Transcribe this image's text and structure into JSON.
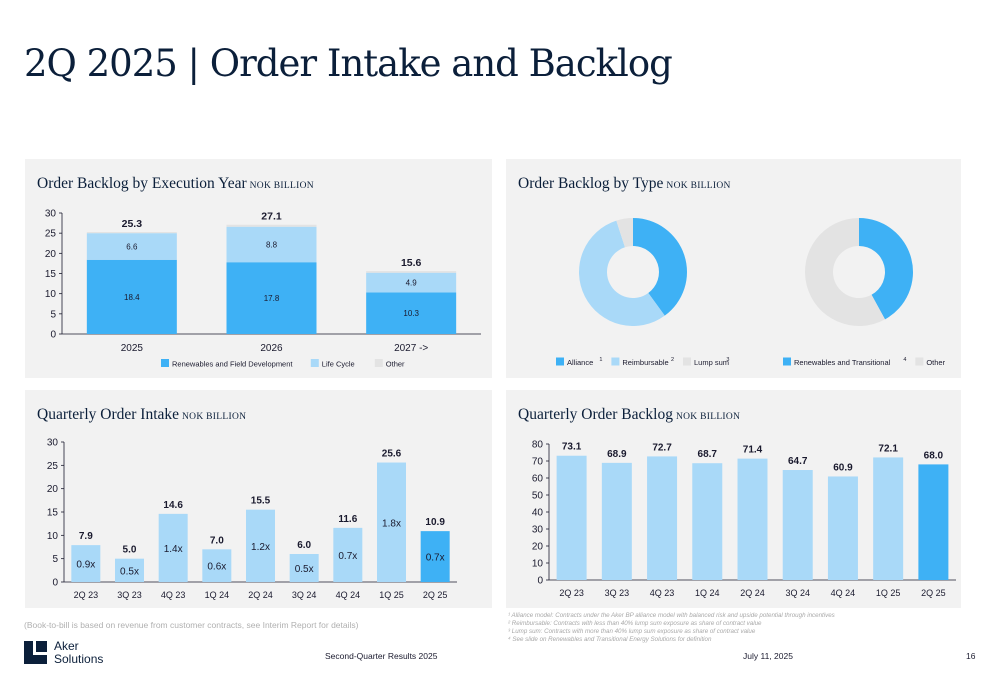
{
  "page": {
    "title": "2Q 2025 | Order Intake and Backlog"
  },
  "colors": {
    "renewables": "#3eb1f5",
    "lifecycle": "#a9d9f8",
    "other": "#e3e3e3",
    "dark": "#1a1a2e",
    "panel": "#f2f2f2"
  },
  "panels": {
    "backlog_year": {
      "title": "Order Backlog by Execution Year",
      "unit": "NOK BILLION"
    },
    "backlog_type": {
      "title": "Order Backlog by Type",
      "unit": "NOK BILLION"
    },
    "quarterly_intake": {
      "title": "Quarterly Order Intake",
      "unit": "NOK BILLION"
    },
    "quarterly_backlog": {
      "title": "Quarterly Order Backlog",
      "unit": "NOK BILLION"
    }
  },
  "chart_data": [
    {
      "id": "backlog_year",
      "type": "bar",
      "stacked": true,
      "categories": [
        "2025",
        "2026",
        "2027 ->"
      ],
      "series": [
        {
          "name": "Renewables and Field Development",
          "values": [
            18.4,
            17.8,
            10.3
          ],
          "color": "#3eb1f5"
        },
        {
          "name": "Life Cycle",
          "values": [
            6.6,
            8.8,
            4.9
          ],
          "color": "#a9d9f8"
        },
        {
          "name": "Other",
          "values": [
            0.3,
            0.5,
            0.4
          ],
          "color": "#e3e3e3"
        }
      ],
      "segment_labels": [
        [
          "18.4",
          "6.6"
        ],
        [
          "17.8",
          "8.8"
        ],
        [
          "10.3",
          "4.9"
        ]
      ],
      "totals": [
        "25.3",
        "27.1",
        "15.6"
      ],
      "yticks": [
        "0",
        "5",
        "10",
        "15",
        "20",
        "25",
        "30"
      ],
      "ylim": [
        0,
        30
      ],
      "legend_position": "bottom",
      "grid": false
    },
    {
      "id": "backlog_type_1",
      "type": "pie",
      "donut": true,
      "categories": [
        "Alliance",
        "Reimbursable",
        "Lump sum"
      ],
      "values": [
        40,
        55,
        5
      ],
      "colors": [
        "#3eb1f5",
        "#a9d9f8",
        "#e3e3e3"
      ],
      "legend_sup": [
        "1",
        "2",
        "3"
      ],
      "legend_position": "bottom"
    },
    {
      "id": "backlog_type_2",
      "type": "pie",
      "donut": true,
      "categories": [
        "Renewables and Transitional",
        "Other"
      ],
      "values": [
        42,
        58
      ],
      "colors": [
        "#3eb1f5",
        "#e3e3e3"
      ],
      "legend_sup": [
        "4",
        ""
      ],
      "legend_position": "bottom"
    },
    {
      "id": "quarterly_intake",
      "type": "bar",
      "categories": [
        "2Q 23",
        "3Q 23",
        "4Q 23",
        "1Q 24",
        "2Q 24",
        "3Q 24",
        "4Q 24",
        "1Q 25",
        "2Q 25"
      ],
      "values": [
        7.9,
        5.0,
        14.6,
        7.0,
        15.5,
        6.0,
        11.6,
        25.6,
        10.9
      ],
      "value_labels": [
        "7.9",
        "5.0",
        "14.6",
        "7.0",
        "15.5",
        "6.0",
        "11.6",
        "25.6",
        "10.9"
      ],
      "ratio_labels": [
        "0.9x",
        "0.5x",
        "1.4x",
        "0.6x",
        "1.2x",
        "0.5x",
        "0.7x",
        "1.8x",
        "0.7x"
      ],
      "highlight_last": true,
      "yticks": [
        "0",
        "5",
        "10",
        "15",
        "20",
        "25",
        "30"
      ],
      "ylim": [
        0,
        30
      ],
      "grid": false
    },
    {
      "id": "quarterly_backlog",
      "type": "bar",
      "categories": [
        "2Q 23",
        "3Q 23",
        "4Q 23",
        "1Q 24",
        "2Q 24",
        "3Q 24",
        "4Q 24",
        "1Q 25",
        "2Q 25"
      ],
      "values": [
        73.1,
        68.9,
        72.7,
        68.7,
        71.4,
        64.7,
        60.9,
        72.1,
        68.0
      ],
      "value_labels": [
        "73.1",
        "68.9",
        "72.7",
        "68.7",
        "71.4",
        "64.7",
        "60.9",
        "72.1",
        "68.0"
      ],
      "highlight_last": true,
      "yticks": [
        "0",
        "10",
        "20",
        "30",
        "40",
        "50",
        "60",
        "70",
        "80"
      ],
      "ylim": [
        0,
        80
      ],
      "grid": false
    }
  ],
  "notes": {
    "book_to_bill": "(Book-to-bill is based on revenue from customer contracts, see Interim Report for details)",
    "footnotes": [
      "¹ Alliance model: Contracts under the Aker BP alliance model with balanced risk and upside potential through incentives",
      "² Reimbursable: Contracts with less than 40% lump sum exposure as share of contract value",
      "³ Lump sum: Contracts with more than 40% lump sum exposure as share of contract value",
      "⁴ See slide on Renewables and Transitional Energy Solutions for definition"
    ]
  },
  "footer": {
    "logo_line1": "Aker",
    "logo_line2": "Solutions",
    "center": "Second-Quarter Results 2025",
    "date": "July 11, 2025",
    "page": "16"
  }
}
